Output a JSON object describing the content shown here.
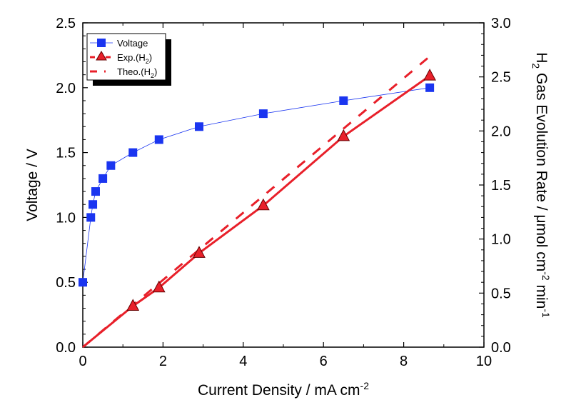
{
  "chart_data": {
    "type": "line",
    "xlabel": "Current Density / mA cm",
    "xlabel_sup": "-2",
    "ylabel_left": "Voltage / V",
    "ylabel_right": {
      "pre": "H",
      "sub": "2",
      "mid": " Gas Evolution Rate / μmol cm",
      "sup1": "-2",
      "mid2": " min",
      "sup2": "-1"
    },
    "xlim": [
      0,
      10
    ],
    "ylim_left": [
      0,
      2.5
    ],
    "ylim_right": [
      0,
      3.0
    ],
    "x_ticks": [
      "0",
      "2",
      "4",
      "6",
      "8",
      "10"
    ],
    "y_left_ticks": [
      "0.0",
      "0.5",
      "1.0",
      "1.5",
      "2.0",
      "2.5"
    ],
    "y_right_ticks": [
      "0.0",
      "0.5",
      "1.0",
      "1.5",
      "2.0",
      "2.5",
      "3.0"
    ],
    "grid": false,
    "legend_position": "top-left",
    "series": [
      {
        "name": "Voltage",
        "axis": "left",
        "marker": "square",
        "color": "#1a35f0",
        "x": [
          0,
          0.2,
          0.25,
          0.32,
          0.5,
          0.7,
          1.25,
          1.9,
          2.9,
          4.5,
          6.5,
          8.65
        ],
        "y": [
          0.5,
          1.0,
          1.1,
          1.2,
          1.3,
          1.4,
          1.5,
          1.6,
          1.7,
          1.8,
          1.9,
          2.0
        ]
      },
      {
        "name": "Exp.(H",
        "name_sub": "2",
        "name_end": ")",
        "axis": "right",
        "marker": "triangle",
        "color": "#e8202a",
        "x": [
          0,
          1.25,
          1.9,
          2.9,
          4.5,
          6.5,
          8.65
        ],
        "y": [
          0,
          0.38,
          0.55,
          0.87,
          1.31,
          1.95,
          2.51
        ]
      },
      {
        "name": "Theo.(H",
        "name_sub": "2",
        "name_end": ")",
        "axis": "right",
        "marker": "none",
        "color": "#e8202a",
        "x": [
          0,
          8.65
        ],
        "y": [
          0,
          2.69
        ]
      }
    ]
  }
}
